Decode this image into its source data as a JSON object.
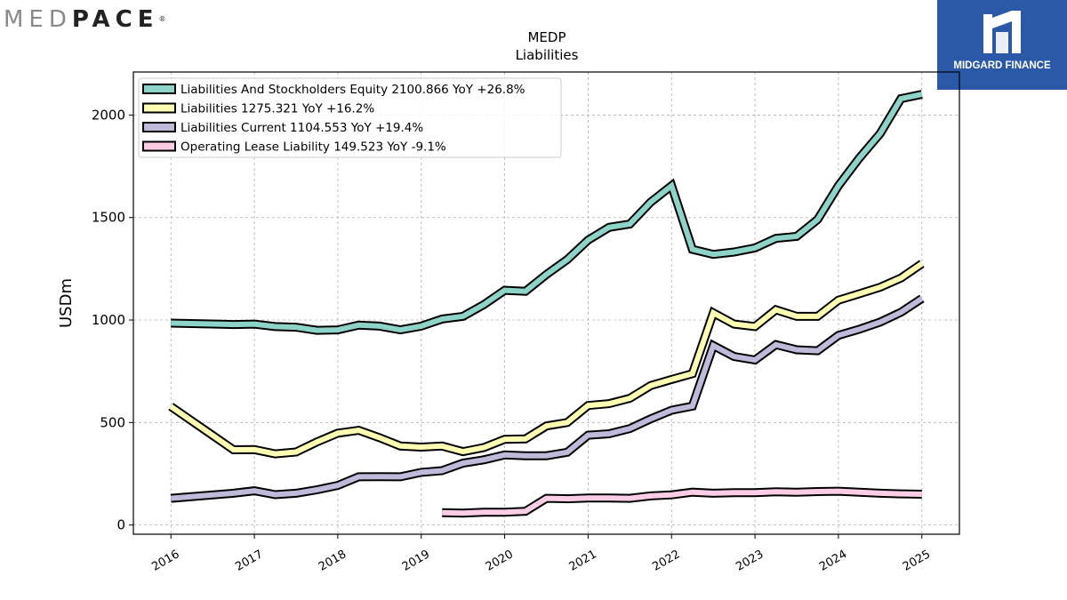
{
  "brand": {
    "left_logo": {
      "light": "MED",
      "dark": "PACE",
      "reg": "®"
    },
    "right_logo": {
      "text": "MIDGARD FINANCE",
      "bg": "#2b59a8"
    }
  },
  "chart_data": {
    "type": "line",
    "title": "MEDP",
    "subtitle": "Liabilities",
    "ylabel": "USDm",
    "xlabel": "",
    "xlim": [
      2015.55,
      2025.45
    ],
    "ylim": [
      -45,
      2210
    ],
    "xticks": [
      2016,
      2017,
      2018,
      2019,
      2020,
      2021,
      2022,
      2023,
      2024,
      2025
    ],
    "yticks": [
      0,
      500,
      1000,
      1500,
      2000
    ],
    "grid": true,
    "legend_position": "top-left",
    "series": [
      {
        "name": "Liabilities And Stockholders Equity",
        "legend_label": "Liabilities And Stockholders Equity  2100.866 YoY +26.8%",
        "color": "#8dd3c7",
        "points": [
          [
            2016.0,
            985
          ],
          [
            2016.75,
            978
          ],
          [
            2017.0,
            980
          ],
          [
            2017.25,
            968
          ],
          [
            2017.5,
            965
          ],
          [
            2017.75,
            950
          ],
          [
            2018.0,
            952
          ],
          [
            2018.25,
            975
          ],
          [
            2018.5,
            970
          ],
          [
            2018.75,
            952
          ],
          [
            2019.0,
            970
          ],
          [
            2019.25,
            1005
          ],
          [
            2019.5,
            1018
          ],
          [
            2019.75,
            1075
          ],
          [
            2020.0,
            1145
          ],
          [
            2020.25,
            1140
          ],
          [
            2020.5,
            1222
          ],
          [
            2020.75,
            1295
          ],
          [
            2021.0,
            1390
          ],
          [
            2021.25,
            1452
          ],
          [
            2021.5,
            1468
          ],
          [
            2021.75,
            1575
          ],
          [
            2022.0,
            1655
          ],
          [
            2022.25,
            1345
          ],
          [
            2022.5,
            1320
          ],
          [
            2022.75,
            1332
          ],
          [
            2023.0,
            1352
          ],
          [
            2023.25,
            1398
          ],
          [
            2023.5,
            1408
          ],
          [
            2023.75,
            1490
          ],
          [
            2024.0,
            1655
          ],
          [
            2024.25,
            1790
          ],
          [
            2024.5,
            1910
          ],
          [
            2024.75,
            2080
          ],
          [
            2025.0,
            2101
          ]
        ]
      },
      {
        "name": "Liabilities",
        "legend_label": "Liabilities  1275.321 YoY +16.2%",
        "color": "#ffffb3",
        "points": [
          [
            2016.0,
            578
          ],
          [
            2016.75,
            367
          ],
          [
            2017.0,
            368
          ],
          [
            2017.25,
            347
          ],
          [
            2017.5,
            356
          ],
          [
            2017.75,
            405
          ],
          [
            2018.0,
            448
          ],
          [
            2018.25,
            462
          ],
          [
            2018.5,
            426
          ],
          [
            2018.75,
            385
          ],
          [
            2019.0,
            380
          ],
          [
            2019.25,
            385
          ],
          [
            2019.5,
            358
          ],
          [
            2019.75,
            378
          ],
          [
            2020.0,
            418
          ],
          [
            2020.25,
            420
          ],
          [
            2020.5,
            483
          ],
          [
            2020.75,
            500
          ],
          [
            2021.0,
            583
          ],
          [
            2021.25,
            592
          ],
          [
            2021.5,
            618
          ],
          [
            2021.75,
            680
          ],
          [
            2022.0,
            710
          ],
          [
            2022.25,
            738
          ],
          [
            2022.5,
            1035
          ],
          [
            2022.75,
            980
          ],
          [
            2023.0,
            968
          ],
          [
            2023.25,
            1050
          ],
          [
            2023.5,
            1018
          ],
          [
            2023.75,
            1018
          ],
          [
            2024.0,
            1097
          ],
          [
            2024.25,
            1128
          ],
          [
            2024.5,
            1160
          ],
          [
            2024.75,
            1205
          ],
          [
            2025.0,
            1275
          ]
        ]
      },
      {
        "name": "Liabilities Current",
        "legend_label": "Liabilities Current  1104.553 YoY +19.4%",
        "color": "#bebada",
        "points": [
          [
            2016.0,
            130
          ],
          [
            2016.75,
            155
          ],
          [
            2017.0,
            167
          ],
          [
            2017.25,
            148
          ],
          [
            2017.5,
            155
          ],
          [
            2017.75,
            172
          ],
          [
            2018.0,
            193
          ],
          [
            2018.25,
            235
          ],
          [
            2018.5,
            236
          ],
          [
            2018.75,
            235
          ],
          [
            2019.0,
            257
          ],
          [
            2019.25,
            265
          ],
          [
            2019.5,
            302
          ],
          [
            2019.75,
            318
          ],
          [
            2020.0,
            342
          ],
          [
            2020.25,
            338
          ],
          [
            2020.5,
            338
          ],
          [
            2020.75,
            355
          ],
          [
            2021.0,
            438
          ],
          [
            2021.25,
            445
          ],
          [
            2021.5,
            470
          ],
          [
            2021.75,
            518
          ],
          [
            2022.0,
            560
          ],
          [
            2022.25,
            580
          ],
          [
            2022.5,
            875
          ],
          [
            2022.75,
            822
          ],
          [
            2023.0,
            805
          ],
          [
            2023.25,
            880
          ],
          [
            2023.5,
            855
          ],
          [
            2023.75,
            850
          ],
          [
            2024.0,
            925
          ],
          [
            2024.25,
            955
          ],
          [
            2024.5,
            990
          ],
          [
            2024.75,
            1038
          ],
          [
            2025.0,
            1105
          ]
        ]
      },
      {
        "name": "Operating Lease Liability",
        "legend_label": "Operating Lease Liability  149.523 YoY -9.1%",
        "color": "#fccde5",
        "points": [
          [
            2019.25,
            60
          ],
          [
            2019.5,
            58
          ],
          [
            2019.75,
            62
          ],
          [
            2020.0,
            62
          ],
          [
            2020.25,
            67
          ],
          [
            2020.5,
            130
          ],
          [
            2020.75,
            128
          ],
          [
            2021.0,
            132
          ],
          [
            2021.25,
            132
          ],
          [
            2021.5,
            130
          ],
          [
            2021.75,
            142
          ],
          [
            2022.0,
            147
          ],
          [
            2022.25,
            160
          ],
          [
            2022.5,
            155
          ],
          [
            2022.75,
            158
          ],
          [
            2023.0,
            158
          ],
          [
            2023.25,
            162
          ],
          [
            2023.5,
            160
          ],
          [
            2023.75,
            163
          ],
          [
            2024.0,
            165
          ],
          [
            2024.25,
            160
          ],
          [
            2024.5,
            155
          ],
          [
            2024.75,
            152
          ],
          [
            2025.0,
            150
          ]
        ]
      }
    ]
  }
}
